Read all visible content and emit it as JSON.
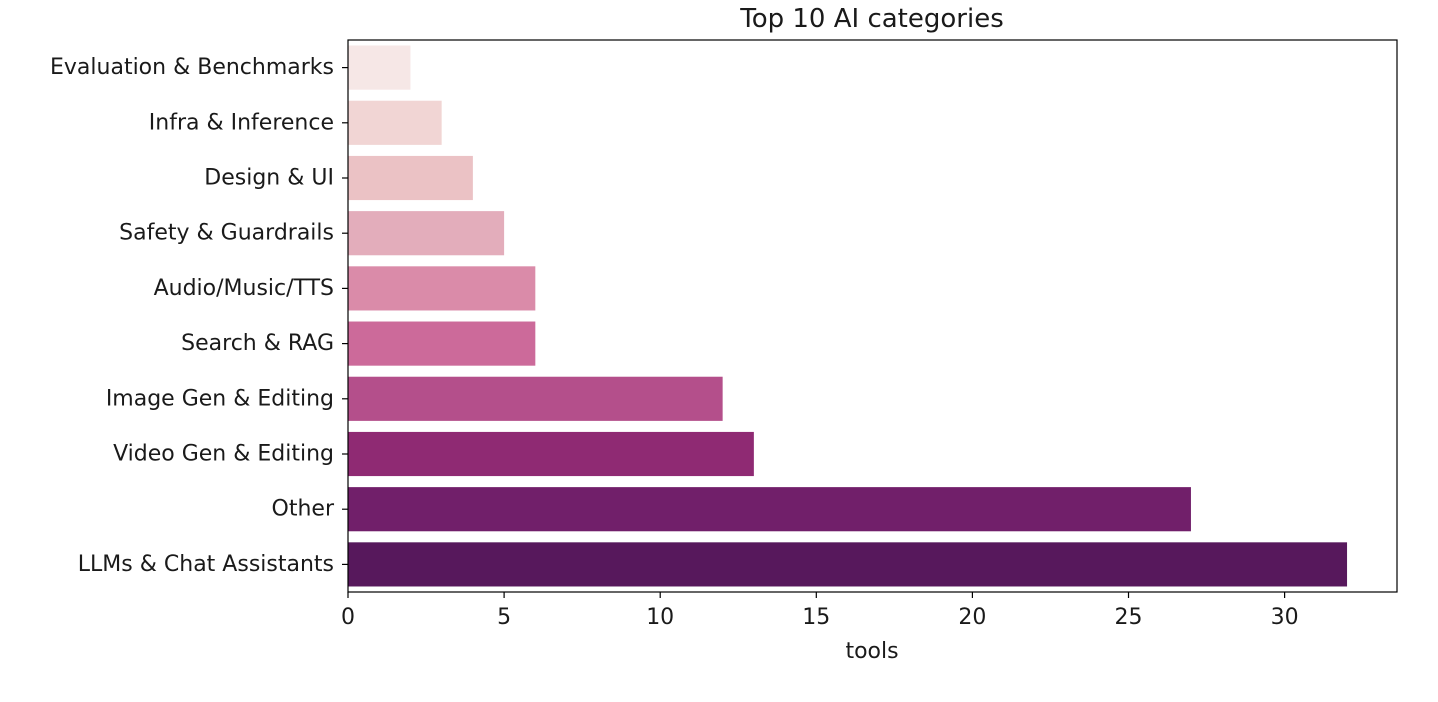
{
  "chart_data": {
    "type": "bar",
    "orientation": "horizontal",
    "title": "Top 10 AI categories",
    "xlabel": "tools",
    "ylabel": "",
    "xlim": [
      0,
      33.6
    ],
    "xticks": [
      0,
      5,
      10,
      15,
      20,
      25,
      30
    ],
    "grid": false,
    "legend": "none",
    "categories": [
      "Evaluation & Benchmarks",
      "Infra & Inference",
      "Design & UI",
      "Safety & Guardrails",
      "Audio/Music/TTS",
      "Search & RAG",
      "Image Gen & Editing",
      "Video Gen & Editing",
      "Other",
      "LLMs & Chat Assistants"
    ],
    "values": [
      2,
      3,
      4,
      5,
      6,
      6,
      12,
      13,
      27,
      32
    ],
    "colors": [
      "#f6e7e6",
      "#f1d5d4",
      "#ebc2c5",
      "#e3adbb",
      "#da8ba9",
      "#cc6a9a",
      "#b44f8b",
      "#8f2a73",
      "#711f6a",
      "#57185c"
    ]
  }
}
